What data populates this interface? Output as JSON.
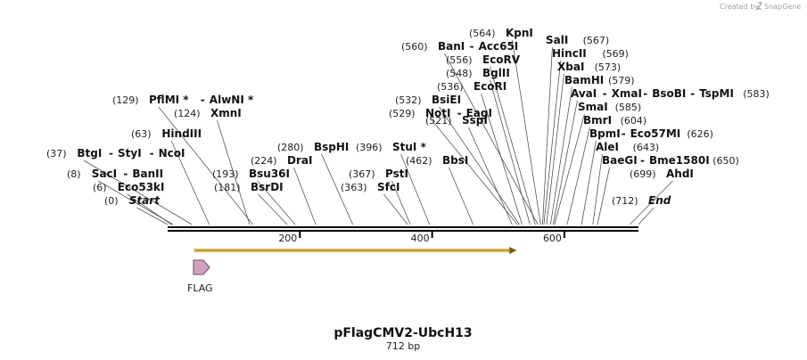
{
  "credit": {
    "prefix": "Created by",
    "brand": "SnapGene"
  },
  "map": {
    "title": "pFlagCMV2-UbcH13",
    "length_label": "712 bp",
    "length": 712
  },
  "ruler": {
    "ticks": [
      200,
      400,
      600
    ]
  },
  "feature": {
    "name": "FLAG"
  },
  "orf": {
    "start": 40,
    "end": 525
  },
  "rows": [
    {
      "y": 229,
      "items": [
        {
          "pos": "(0)",
          "name": "Start",
          "site": 0,
          "italic": true
        },
        {
          "pos": "(712)",
          "name": "End",
          "site": 712,
          "italic": true
        }
      ]
    },
    {
      "y": 214,
      "items": [
        {
          "pos": "(6)",
          "name": "Eco53kI",
          "site": 6
        },
        {
          "pos": "(181)",
          "name": "BsrDI",
          "site": 181
        },
        {
          "pos": "(363)",
          "name": "SfcI",
          "site": 363
        }
      ]
    },
    {
      "y": 199,
      "items": [
        {
          "pos": "(8)",
          "name": "SacI",
          "site": 8
        },
        {
          "name": "BanII"
        },
        {
          "pos": "(193)",
          "name": "Bsu36I",
          "site": 193
        },
        {
          "pos": "(367)",
          "name": "PstI",
          "site": 367
        },
        {
          "pos": "(699)",
          "name": "AhdI",
          "site": 699
        }
      ]
    },
    {
      "y": 184,
      "items": [
        {
          "pos": "(224)",
          "name": "DraI",
          "site": 224
        },
        {
          "pos": "(462)",
          "name": "BbsI",
          "site": 462
        },
        {
          "name": "BaeGI",
          "site": 650
        },
        {
          "name": "Bme1580I"
        },
        {
          "pos": "(650)"
        }
      ]
    },
    {
      "y": 176,
      "items": [
        {
          "pos": "(37)",
          "name": "BtgI",
          "site": 37
        },
        {
          "name": "StyI"
        },
        {
          "name": "NcoI"
        }
      ]
    },
    {
      "y": 169,
      "items": [
        {
          "pos": "(280)",
          "name": "BspHI",
          "site": 280
        },
        {
          "pos": "(396)",
          "name": "StuI *",
          "site": 396
        },
        {
          "name": "AleI",
          "site": 643
        },
        {
          "pos": "(643)"
        }
      ]
    },
    {
      "y": 154,
      "items": [
        {
          "pos": "(63)",
          "name": "HindIII",
          "site": 63
        },
        {
          "name": "BpmI",
          "site": 626
        },
        {
          "name": "Eco57MI"
        },
        {
          "pos": "(626)"
        }
      ]
    },
    {
      "y": 139,
      "items": [
        {
          "pos": "(521)",
          "name": "SspI",
          "site": 521
        },
        {
          "name": "BmrI",
          "site": 604
        },
        {
          "pos": "(604)"
        }
      ]
    },
    {
      "y": 131,
      "items": [
        {
          "pos": "(124)",
          "name": "XmnI",
          "site": 124
        },
        {
          "pos": "(529)",
          "name": "NotI",
          "site": 529
        },
        {
          "name": "EagI"
        }
      ]
    },
    {
      "y": 124,
      "items": [
        {
          "name": "SmaI",
          "site": 585
        },
        {
          "pos": "(585)"
        }
      ]
    },
    {
      "y": 116,
      "items": [
        {
          "pos": "(129)",
          "name": "PflMI *",
          "site": 129
        },
        {
          "name": "AlwNI *"
        },
        {
          "pos": "(532)",
          "name": "BsiEI",
          "site": 532
        }
      ]
    },
    {
      "y": 109,
      "items": [
        {
          "name": "AvaI",
          "site": 583
        },
        {
          "name": "XmaI"
        },
        {
          "name": "BsoBI"
        },
        {
          "name": "TspMI"
        },
        {
          "pos": "(583)"
        }
      ]
    },
    {
      "y": 101,
      "items": [
        {
          "pos": "(536)",
          "name": "EcoRI",
          "site": 536
        }
      ]
    },
    {
      "y": 94,
      "items": [
        {
          "name": "BamHI",
          "site": 579
        },
        {
          "pos": "(579)"
        }
      ]
    },
    {
      "y": 86,
      "items": [
        {
          "pos": "(548)",
          "name": "BglII",
          "site": 548
        }
      ]
    },
    {
      "y": 79,
      "items": [
        {
          "name": "XbaI",
          "site": 573
        },
        {
          "pos": "(573)"
        }
      ]
    },
    {
      "y": 71,
      "items": [
        {
          "pos": "(556)",
          "name": "EcoRV",
          "site": 556
        }
      ]
    },
    {
      "y": 64,
      "items": [
        {
          "name": "HincII",
          "site": 569
        },
        {
          "pos": "(569)"
        }
      ]
    },
    {
      "y": 56,
      "items": [
        {
          "pos": "(560)",
          "name": "BanI",
          "site": 560
        },
        {
          "name": "Acc65I"
        }
      ]
    },
    {
      "y": 49,
      "items": [
        {
          "name": "SalI",
          "site": 567
        },
        {
          "pos": "(567)"
        }
      ]
    },
    {
      "y": 41,
      "items": [
        {
          "pos": "(564)",
          "name": "KpnI",
          "site": 564
        }
      ]
    }
  ]
}
